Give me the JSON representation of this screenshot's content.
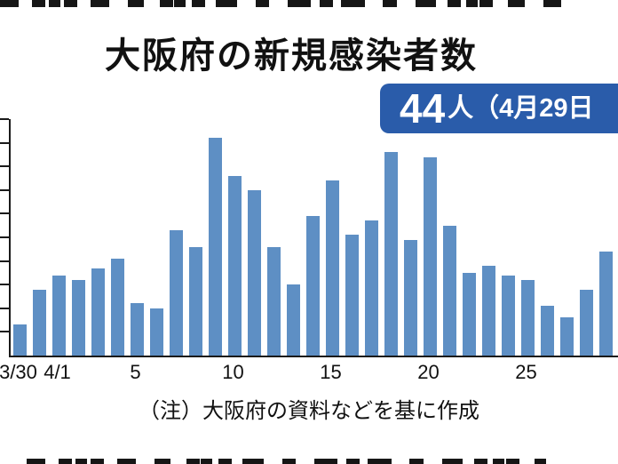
{
  "page": {
    "title": "大阪府の新規感染者数",
    "footnote": "（注）大阪府の資料などを基に作成"
  },
  "badge": {
    "count": "44",
    "suffix": "人（4月29日"
  },
  "colors": {
    "bar": "#5e8fc4",
    "badge_bg": "#2a5caa",
    "axis": "#1a1a1a"
  },
  "chart_data": {
    "type": "bar",
    "title": "大阪府の新規感染者数",
    "unit": "人",
    "x": [
      "3/30",
      "3/31",
      "4/1",
      "4/2",
      "4/3",
      "4/4",
      "4/5",
      "4/6",
      "4/7",
      "4/8",
      "4/9",
      "4/10",
      "4/11",
      "4/12",
      "4/13",
      "4/14",
      "4/15",
      "4/16",
      "4/17",
      "4/18",
      "4/19",
      "4/20",
      "4/21",
      "4/22",
      "4/23",
      "4/24",
      "4/25",
      "4/26",
      "4/27",
      "4/28",
      "4/29"
    ],
    "values": [
      13,
      28,
      34,
      32,
      37,
      41,
      22,
      20,
      53,
      46,
      92,
      76,
      70,
      46,
      30,
      59,
      74,
      51,
      57,
      86,
      49,
      84,
      55,
      35,
      38,
      34,
      32,
      21,
      16,
      28,
      44
    ],
    "latest_point": {
      "date": "4/29",
      "value": 44
    },
    "xlabel": "",
    "ylabel": "",
    "ylim": [
      0,
      100
    ],
    "y_tick_interval": 10,
    "y_tick_labels_visible": false,
    "x_tick_labels": [
      {
        "label": "3/30",
        "index": 0
      },
      {
        "label": "4/1",
        "index": 2
      },
      {
        "label": "5",
        "index": 6
      },
      {
        "label": "10",
        "index": 11
      },
      {
        "label": "15",
        "index": 16
      },
      {
        "label": "20",
        "index": 21
      },
      {
        "label": "25",
        "index": 26
      }
    ],
    "grid": false,
    "legend": "none",
    "source_note": "（注）大阪府の資料などを基に作成"
  }
}
